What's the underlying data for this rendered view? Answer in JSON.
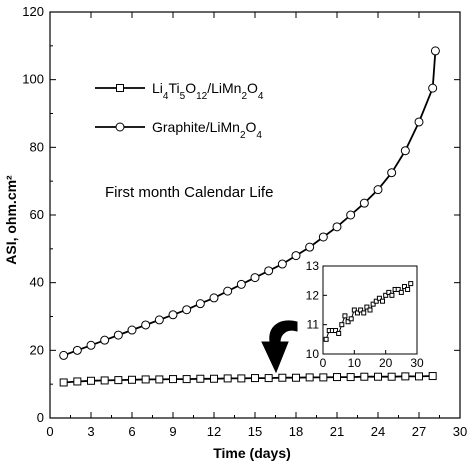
{
  "chart_data": {
    "type": "line",
    "xlabel": "Time (days)",
    "ylabel": "ASI, ohm.cm²",
    "xlim": [
      0,
      30
    ],
    "ylim": [
      0,
      120
    ],
    "xticks": [
      "0",
      "3",
      "6",
      "9",
      "12",
      "15",
      "18",
      "21",
      "24",
      "27",
      "30"
    ],
    "yticks": [
      "0",
      "20",
      "40",
      "60",
      "80",
      "100",
      "120"
    ],
    "annotation": "First month Calendar Life",
    "legend_position": "top-left",
    "series": [
      {
        "name": "Li4Ti5O12/LiMn2O4",
        "label_parts": [
          "Li",
          "4",
          "Ti",
          "5",
          "O",
          "12",
          "/LiMn",
          "2",
          "O",
          "4"
        ],
        "marker": "square",
        "x": [
          1,
          2,
          3,
          4,
          5,
          6,
          7,
          8,
          9,
          10,
          11,
          12,
          13,
          14,
          15,
          16,
          17,
          18,
          19,
          20,
          21,
          22,
          23,
          24,
          25,
          26,
          27,
          28
        ],
        "y": [
          10.5,
          10.8,
          11.0,
          11.1,
          11.2,
          11.3,
          11.4,
          11.4,
          11.5,
          11.5,
          11.6,
          11.6,
          11.7,
          11.7,
          11.8,
          11.8,
          11.9,
          11.9,
          12.0,
          12.0,
          12.1,
          12.1,
          12.2,
          12.2,
          12.2,
          12.3,
          12.3,
          12.4
        ]
      },
      {
        "name": "Graphite/LiMn2O4",
        "label_parts": [
          "Graphite/LiMn",
          "2",
          "O",
          "4"
        ],
        "marker": "circle",
        "x": [
          1,
          2,
          3,
          4,
          5,
          6,
          7,
          8,
          9,
          10,
          11,
          12,
          13,
          14,
          15,
          16,
          17,
          18,
          19,
          20,
          21,
          22,
          23,
          24,
          25,
          26,
          27,
          28
        ],
        "y": [
          18.5,
          20.0,
          21.5,
          23.0,
          24.5,
          26.0,
          27.5,
          29.0,
          30.5,
          32.0,
          33.8,
          35.5,
          37.5,
          39.5,
          41.5,
          43.5,
          45.5,
          48.0,
          50.5,
          53.5,
          56.5,
          60.0,
          63.5,
          67.5,
          72.5,
          79.0,
          87.5,
          97.5
        ]
      }
    ],
    "extra_point": {
      "series": 1,
      "x": 28.2,
      "y": 108.5
    },
    "inset": {
      "type": "line",
      "xlim": [
        0,
        30
      ],
      "ylim": [
        10,
        13
      ],
      "xticks": [
        "0",
        "10",
        "20",
        "30"
      ],
      "yticks": [
        "10",
        "11",
        "12",
        "13"
      ],
      "marker": "square",
      "x": [
        1,
        2,
        3,
        4,
        5,
        6,
        7,
        8,
        9,
        10,
        11,
        12,
        13,
        14,
        15,
        16,
        17,
        18,
        19,
        20,
        21,
        22,
        23,
        24,
        25,
        26,
        27,
        28
      ],
      "y": [
        10.5,
        10.8,
        10.8,
        10.8,
        10.7,
        11.0,
        11.3,
        11.1,
        11.2,
        11.5,
        11.4,
        11.5,
        11.4,
        11.6,
        11.5,
        11.7,
        11.8,
        11.9,
        11.8,
        12.0,
        12.1,
        12.0,
        12.2,
        12.2,
        12.1,
        12.3,
        12.2,
        12.4
      ]
    }
  }
}
